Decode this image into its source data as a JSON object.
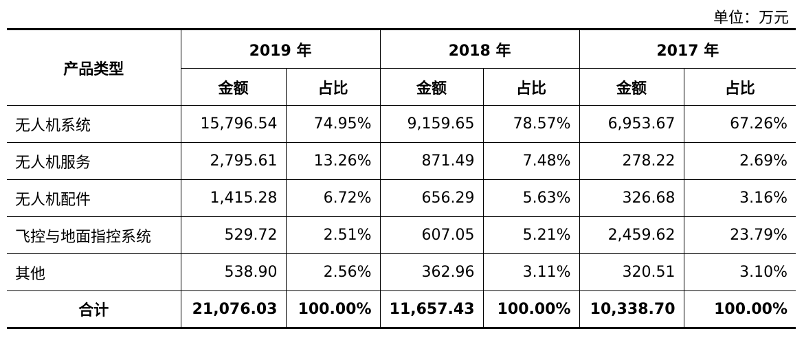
{
  "unit_label": "单位：万元",
  "header": {
    "product_type": "产品类型",
    "years": [
      "2019 年",
      "2018 年",
      "2017 年"
    ],
    "amount": "金额",
    "ratio": "占比"
  },
  "rows": [
    {
      "name": "无人机系统",
      "cells": [
        "15,796.54",
        "74.95%",
        "9,159.65",
        "78.57%",
        "6,953.67",
        "67.26%"
      ]
    },
    {
      "name": "无人机服务",
      "cells": [
        "2,795.61",
        "13.26%",
        "871.49",
        "7.48%",
        "278.22",
        "2.69%"
      ]
    },
    {
      "name": "无人机配件",
      "cells": [
        "1,415.28",
        "6.72%",
        "656.29",
        "5.63%",
        "326.68",
        "3.16%"
      ]
    },
    {
      "name": "飞控与地面指控系统",
      "cells": [
        "529.72",
        "2.51%",
        "607.05",
        "5.21%",
        "2,459.62",
        "23.79%"
      ]
    },
    {
      "name": "其他",
      "cells": [
        "538.90",
        "2.56%",
        "362.96",
        "3.11%",
        "320.51",
        "3.10%"
      ]
    }
  ],
  "total": {
    "name": "合计",
    "cells": [
      "21,076.03",
      "100.00%",
      "11,657.43",
      "100.00%",
      "10,338.70",
      "100.00%"
    ]
  }
}
